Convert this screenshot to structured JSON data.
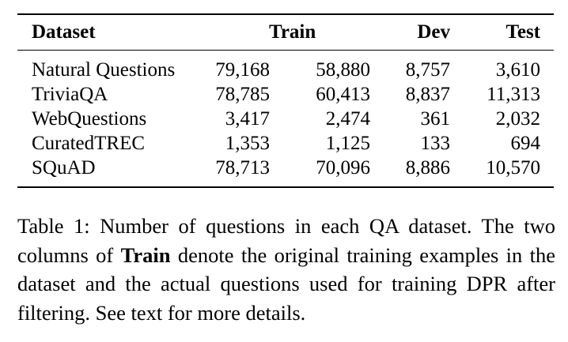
{
  "table": {
    "headers": {
      "dataset": "Dataset",
      "train": "Train",
      "dev": "Dev",
      "test": "Test"
    },
    "rows": [
      {
        "dataset": "Natural Questions",
        "train_original": "79,168",
        "train_used": "58,880",
        "dev": "8,757",
        "test": "3,610"
      },
      {
        "dataset": "TriviaQA",
        "train_original": "78,785",
        "train_used": "60,413",
        "dev": "8,837",
        "test": "11,313"
      },
      {
        "dataset": "WebQuestions",
        "train_original": "3,417",
        "train_used": "2,474",
        "dev": "361",
        "test": "2,032"
      },
      {
        "dataset": "CuratedTREC",
        "train_original": "1,353",
        "train_used": "1,125",
        "dev": "133",
        "test": "694"
      },
      {
        "dataset": "SQuAD",
        "train_original": "78,713",
        "train_used": "70,096",
        "dev": "8,886",
        "test": "10,570"
      }
    ]
  },
  "caption": {
    "before": "Table 1: Number of questions in each QA dataset. The two columns of ",
    "bold": "Train",
    "after": " denote the original training examples in the dataset and the actual questions used for training DPR after filtering. See text for more details."
  }
}
